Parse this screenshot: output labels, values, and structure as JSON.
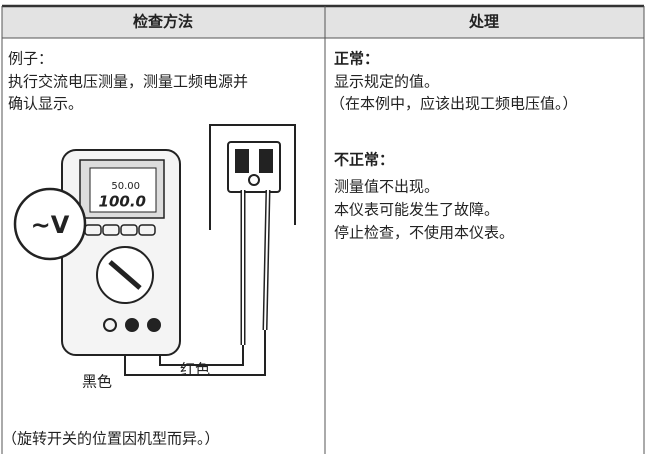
{
  "table": {
    "header": [
      "检查方法",
      "处理"
    ],
    "left": {
      "example_label": "例子：",
      "instruction_lines": [
        "执行交流电压测量，测量工频电源并",
        "确认显示。"
      ],
      "figure": {
        "function_label": "∼V",
        "display_top": "50.00",
        "display_main": "100.0",
        "red_label": "红色",
        "black_label": "黑色"
      },
      "note": "（旋转开关的位置因机型而异。）"
    },
    "right": {
      "normal_title": "正常：",
      "normal_lines": [
        "显示规定的值。",
        "（在本例中，应该出现工频电压值。）"
      ],
      "abnormal_title": "不正常：",
      "abnormal_lines": [
        "测量值不出现。",
        "本仪表可能发生了故障。",
        "停止检查，不使用本仪表。"
      ]
    }
  }
}
